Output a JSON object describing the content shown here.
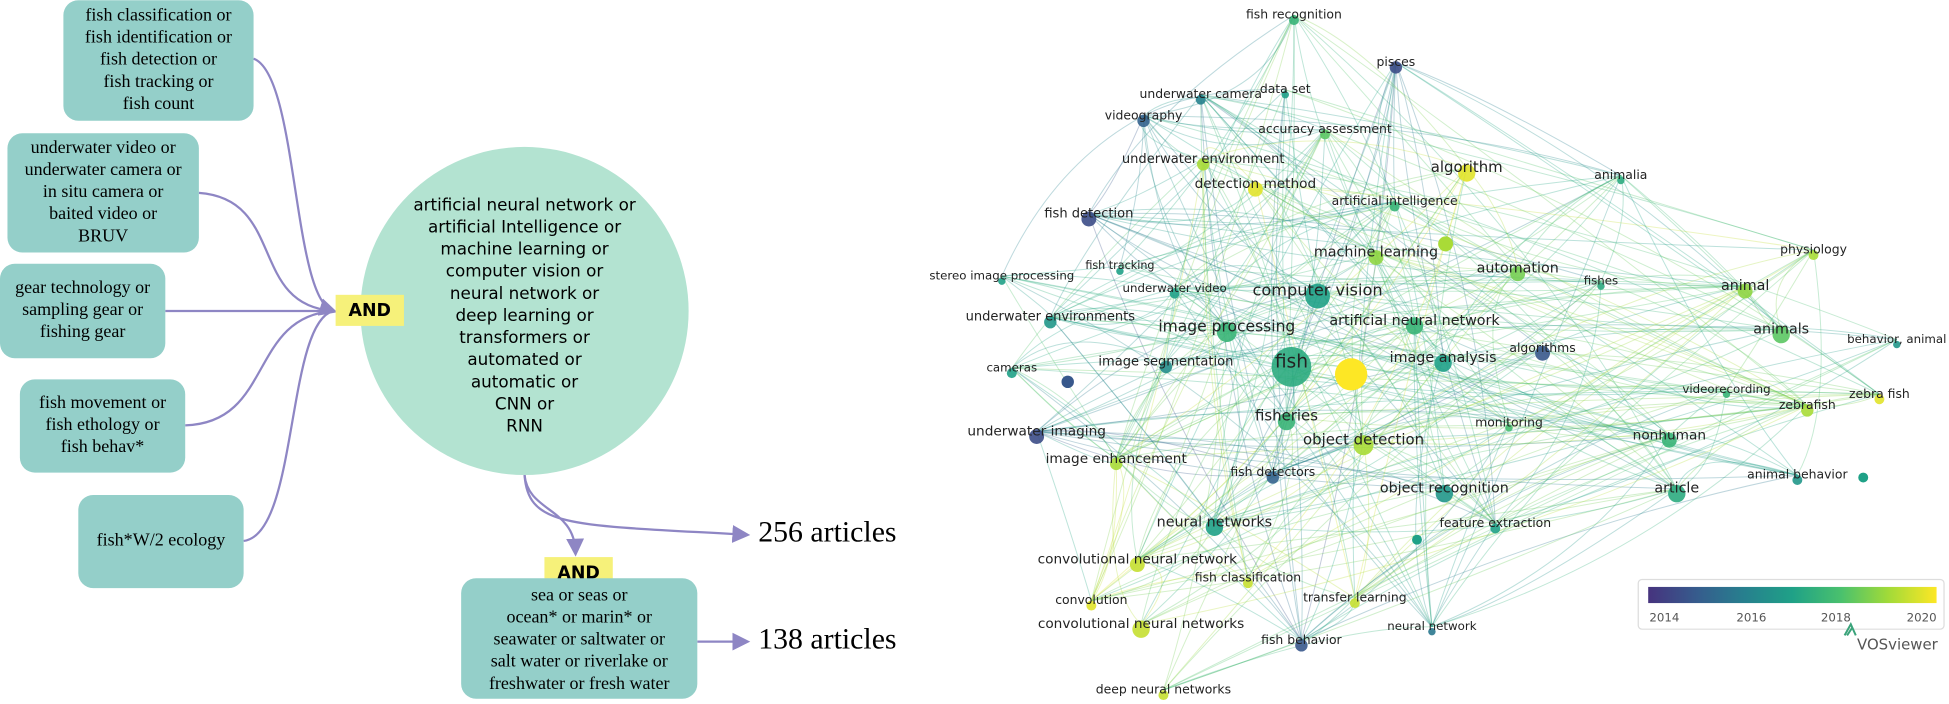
{
  "query": {
    "boxes": [
      {
        "lines": [
          "fish classification or",
          "fish identification or",
          "fish detection or",
          "fish tracking or",
          "fish count"
        ]
      },
      {
        "lines": [
          "underwater video or",
          "underwater camera or",
          "in situ camera or",
          "baited video or",
          "BRUV"
        ]
      },
      {
        "lines": [
          "gear technology or",
          "sampling gear or",
          "fishing gear"
        ]
      },
      {
        "lines": [
          "fish movement or",
          "fish ethology or",
          "fish behav*"
        ]
      },
      {
        "lines": [
          "fish*W/2 ecology"
        ]
      }
    ],
    "and_labels": [
      "AND",
      "AND"
    ],
    "center": {
      "lines": [
        "artificial neural network or",
        "artificial Intelligence or",
        "machine learning or",
        "computer vision or",
        "neural network or",
        "deep learning or",
        "transformers or",
        "automated or",
        "automatic or",
        "CNN or",
        "RNN"
      ]
    },
    "lower_box": {
      "lines": [
        "sea or seas or",
        "ocean* or marin* or",
        "seawater or saltwater or",
        "salt water or riverlake or",
        "freshwater or fresh water"
      ]
    },
    "results": [
      "256 articles",
      "138 articles"
    ]
  },
  "network": {
    "nodes": [
      "fish recognition",
      "pisces",
      "underwater camera",
      "data set",
      "videography",
      "accuracy assessment",
      "underwater environment",
      "algorithm",
      "animalia",
      "detection method",
      "artificial intelligence",
      "fish detection",
      "machine learning",
      "automation",
      "physiology",
      "stereo image processing",
      "fish tracking",
      "underwater video",
      "fishes",
      "computer vision",
      "animal",
      "underwater environments",
      "image processing",
      "artificial neural network",
      "animals",
      "behavior, animal",
      "algorithms",
      "cameras",
      "image segmentation",
      "fish",
      "image analysis",
      "videorecording",
      "zebra fish",
      "zebrafish",
      "fisheries",
      "monitoring",
      "object detection",
      "nonhuman",
      "underwater imaging",
      "image enhancement",
      "fish detectors",
      "animal behavior",
      "object recognition",
      "article",
      "neural networks",
      "feature extraction",
      "convolutional neural network",
      "fish classification",
      "transfer learning",
      "convolution",
      "convolutional neural networks",
      "fish behavior",
      "neural network",
      "deep neural networks"
    ],
    "legend_ticks": [
      2014,
      2016,
      2018,
      2020
    ],
    "brand": "VOSviewer"
  }
}
